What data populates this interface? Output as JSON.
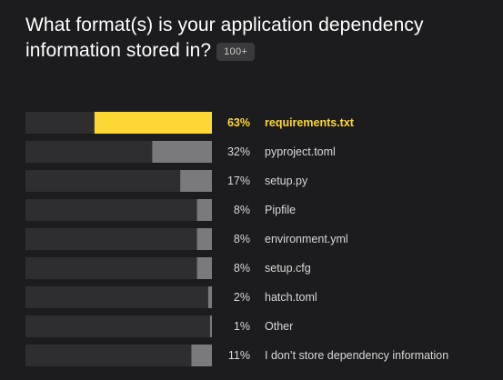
{
  "question": {
    "title": "What format(s) is your application dependency information stored in?",
    "badge": "100+"
  },
  "colors": {
    "background": "#1c1c1e",
    "track": "#2e2e30",
    "bar": "#7a7a7c",
    "highlight": "#fdd835",
    "label": "#d8d8d8"
  },
  "chart_data": {
    "type": "bar",
    "orientation": "horizontal",
    "title": "What format(s) is your application dependency information stored in?",
    "xlim": [
      0,
      100
    ],
    "unit": "%",
    "highlight_index": 0,
    "categories": [
      "requirements.txt",
      "pyproject.toml",
      "setup.py",
      "Pipfile",
      "environment.yml",
      "setup.cfg",
      "hatch.toml",
      "Other",
      "I don’t store dependency information"
    ],
    "values": [
      63,
      32,
      17,
      8,
      8,
      8,
      2,
      1,
      11
    ],
    "value_labels": [
      "63%",
      "32%",
      "17%",
      "8%",
      "8%",
      "8%",
      "2%",
      "1%",
      "11%"
    ]
  }
}
